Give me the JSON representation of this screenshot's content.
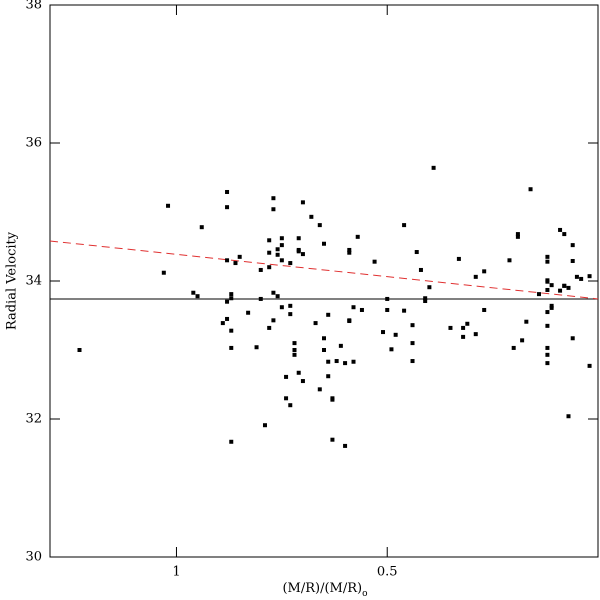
{
  "chart_data": {
    "type": "scatter",
    "x_label": "(M/R)/(M/R)",
    "x_label_subscript": "o",
    "y_label": "Radial Velocity",
    "xlim": [
      1.3,
      0
    ],
    "xticks": [
      1,
      0.5
    ],
    "ylim": [
      30,
      38
    ],
    "yticks": [
      30,
      32,
      34,
      36,
      38
    ],
    "color": "#000000",
    "x": [
      1.23,
      1.03,
      1.02,
      0.96,
      0.95,
      0.94,
      0.89,
      0.88,
      0.88,
      0.88,
      0.88,
      0.88,
      0.87,
      0.87,
      0.87,
      0.87,
      0.87,
      0.86,
      0.85,
      0.83,
      0.81,
      0.8,
      0.8,
      0.79,
      0.78,
      0.78,
      0.78,
      0.78,
      0.77,
      0.77,
      0.77,
      0.77,
      0.76,
      0.76,
      0.76,
      0.75,
      0.75,
      0.75,
      0.75,
      0.74,
      0.74,
      0.73,
      0.73,
      0.73,
      0.73,
      0.72,
      0.72,
      0.72,
      0.71,
      0.71,
      0.71,
      0.71,
      0.7,
      0.7,
      0.7,
      0.68,
      0.67,
      0.66,
      0.66,
      0.65,
      0.65,
      0.65,
      0.64,
      0.64,
      0.64,
      0.63,
      0.63,
      0.63,
      0.62,
      0.61,
      0.6,
      0.6,
      0.59,
      0.59,
      0.59,
      0.59,
      0.58,
      0.58,
      0.57,
      0.56,
      0.53,
      0.51,
      0.5,
      0.5,
      0.49,
      0.48,
      0.46,
      0.46,
      0.44,
      0.44,
      0.44,
      0.43,
      0.42,
      0.41,
      0.41,
      0.4,
      0.39,
      0.35,
      0.33,
      0.32,
      0.32,
      0.31,
      0.29,
      0.29,
      0.27,
      0.27,
      0.21,
      0.2,
      0.19,
      0.19,
      0.18,
      0.17,
      0.16,
      0.14,
      0.12,
      0.12,
      0.12,
      0.12,
      0.12,
      0.12,
      0.12,
      0.12,
      0.12,
      0.12,
      0.11,
      0.11,
      0.11,
      0.09,
      0.09,
      0.08,
      0.08,
      0.08,
      0.07,
      0.07,
      0.06,
      0.06,
      0.06,
      0.05,
      0.04,
      0.02,
      0.02
    ],
    "y": [
      33.0,
      34.12,
      35.09,
      33.83,
      33.78,
      34.78,
      33.39,
      35.29,
      35.07,
      34.3,
      33.45,
      33.7,
      33.28,
      33.75,
      33.81,
      31.67,
      33.03,
      34.26,
      34.35,
      33.54,
      33.04,
      34.16,
      33.74,
      31.91,
      33.32,
      34.2,
      34.59,
      34.41,
      33.43,
      35.2,
      35.04,
      33.83,
      34.46,
      34.38,
      33.78,
      33.62,
      34.62,
      34.52,
      34.3,
      32.61,
      32.3,
      32.2,
      34.26,
      33.64,
      33.52,
      33.0,
      32.93,
      33.1,
      32.67,
      34.62,
      34.45,
      34.43,
      35.14,
      32.55,
      34.39,
      34.93,
      33.39,
      32.43,
      34.81,
      33.0,
      34.54,
      33.17,
      32.62,
      32.83,
      33.51,
      32.28,
      31.7,
      32.3,
      32.84,
      33.06,
      31.61,
      32.81,
      33.42,
      33.43,
      34.45,
      34.41,
      33.62,
      32.83,
      34.64,
      33.58,
      34.28,
      33.26,
      33.58,
      33.74,
      33.01,
      33.22,
      34.81,
      33.57,
      33.1,
      33.36,
      32.84,
      34.42,
      34.16,
      33.75,
      33.71,
      33.91,
      35.64,
      33.32,
      34.32,
      33.32,
      33.19,
      33.38,
      33.23,
      34.06,
      34.14,
      33.58,
      34.3,
      33.03,
      34.68,
      34.64,
      33.14,
      33.41,
      35.33,
      33.81,
      33.99,
      33.03,
      32.81,
      32.93,
      34.35,
      34.28,
      34.01,
      33.87,
      33.55,
      33.35,
      33.94,
      33.64,
      33.61,
      34.74,
      33.86,
      34.68,
      33.93,
      33.93,
      33.9,
      32.04,
      33.17,
      34.52,
      34.29,
      34.06,
      34.03,
      32.77,
      34.07
    ],
    "lines": [
      {
        "x": [
          1.3,
          0
        ],
        "y": [
          33.74,
          33.74
        ],
        "color": "#000000",
        "style": "solid"
      },
      {
        "x": [
          1.3,
          0
        ],
        "y": [
          34.58,
          33.74
        ],
        "color": "#e03030",
        "style": "dashed"
      }
    ]
  }
}
